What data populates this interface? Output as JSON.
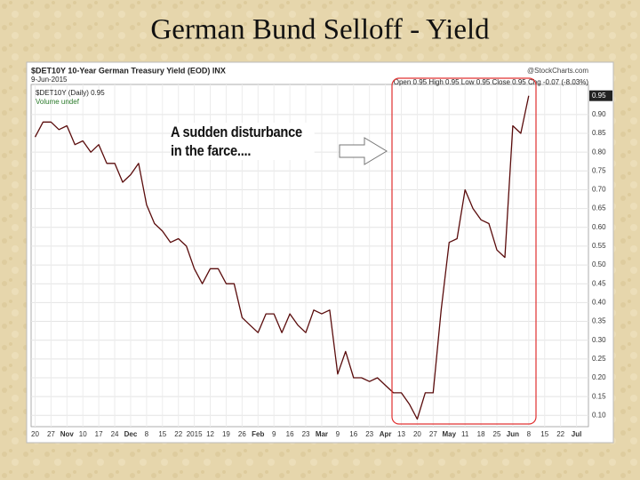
{
  "title": "German Bund Selloff - Yield",
  "chart_data": {
    "type": "line",
    "symbol_line": "$DET10Y 10-Year German Treasury Yield (EOD) INX",
    "date": "9-Jun-2015",
    "source": "@StockCharts.com",
    "ohlc": "Open 0.95 High 0.95 Low 0.95 Close 0.95 Chg -0.07 (-8.03%)",
    "volume_label": "Volume undef",
    "annotation": "A sudden disturbance in the farce....",
    "last_label": "0.95",
    "categories": [
      "20",
      null,
      "27",
      null,
      "Nov",
      null,
      "10",
      null,
      "17",
      null,
      "24",
      null,
      "Dec",
      null,
      "8",
      null,
      "15",
      null,
      "22",
      null,
      "2015",
      null,
      "12",
      null,
      "19",
      null,
      "26",
      null,
      "Feb",
      null,
      "9",
      null,
      "16",
      null,
      "23",
      null,
      "Mar",
      null,
      "9",
      null,
      "16",
      null,
      "23",
      null,
      "Apr",
      null,
      "13",
      null,
      "20",
      null,
      "27",
      null,
      "May",
      null,
      "11",
      null,
      "18",
      null,
      "25",
      null,
      "Jun",
      null,
      "8",
      null,
      "15",
      null,
      "22",
      null,
      "Jul",
      null
    ],
    "series": [
      {
        "name": "$DET10Y (Daily) 0.95",
        "color": "#5a0c0c",
        "values": [
          0.84,
          0.88,
          0.88,
          0.86,
          0.87,
          0.82,
          0.83,
          0.8,
          0.82,
          0.77,
          0.77,
          0.72,
          0.74,
          0.77,
          0.66,
          0.61,
          0.59,
          0.56,
          0.57,
          0.55,
          0.49,
          0.45,
          0.49,
          0.49,
          0.45,
          0.45,
          0.36,
          0.34,
          0.32,
          0.37,
          0.37,
          0.32,
          0.37,
          0.34,
          0.32,
          0.38,
          0.37,
          0.38,
          0.21,
          0.27,
          0.2,
          0.2,
          0.19,
          0.2,
          0.18,
          0.16,
          0.16,
          0.13,
          0.09,
          0.16,
          0.16,
          0.38,
          0.56,
          0.57,
          0.7,
          0.65,
          0.62,
          0.61,
          0.54,
          0.52,
          0.87,
          0.85,
          0.95,
          null,
          null,
          null,
          null,
          null,
          null,
          null
        ]
      }
    ],
    "ylim": [
      0.07,
      0.98
    ],
    "yticks": [
      {
        "value": 0.1,
        "label": "0.10"
      },
      {
        "value": 0.15,
        "label": "0.15"
      },
      {
        "value": 0.2,
        "label": "0.20"
      },
      {
        "value": 0.25,
        "label": "0.25"
      },
      {
        "value": 0.3,
        "label": "0.30"
      },
      {
        "value": 0.35,
        "label": "0.35"
      },
      {
        "value": 0.4,
        "label": "0.40"
      },
      {
        "value": 0.45,
        "label": "0.45"
      },
      {
        "value": 0.5,
        "label": "0.50"
      },
      {
        "value": 0.55,
        "label": "0.55"
      },
      {
        "value": 0.6,
        "label": "0.60"
      },
      {
        "value": 0.65,
        "label": "0.65"
      },
      {
        "value": 0.7,
        "label": "0.70"
      },
      {
        "value": 0.75,
        "label": "0.75"
      },
      {
        "value": 0.8,
        "label": "0.80"
      },
      {
        "value": 0.85,
        "label": "0.85"
      },
      {
        "value": 0.9,
        "label": "0.90"
      }
    ],
    "grid": true
  }
}
